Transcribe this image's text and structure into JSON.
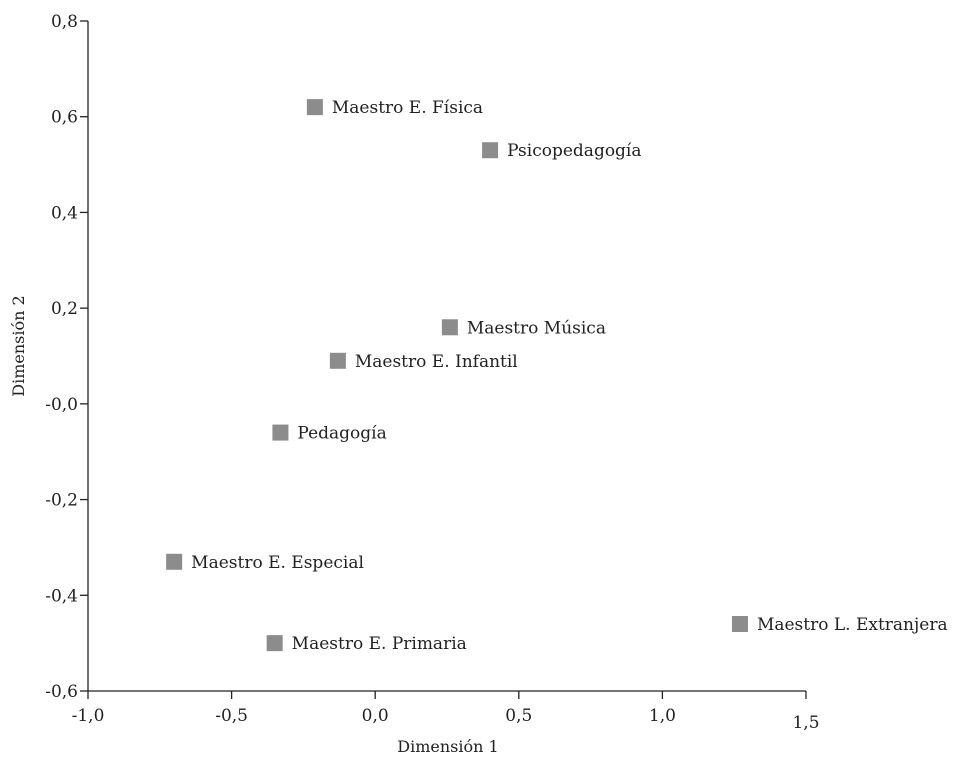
{
  "chart_data": {
    "type": "scatter",
    "xlabel": "Dimensión 1",
    "ylabel": "Dimensión 2",
    "xlim": [
      -1.0,
      1.5
    ],
    "ylim": [
      -0.6,
      0.8
    ],
    "x_ticks": [
      -1.0,
      -0.5,
      0.0,
      0.5,
      1.0,
      1.5
    ],
    "x_tick_labels": [
      "-1,0",
      "-0,5",
      "0,0",
      "0,5",
      "1,0",
      "1,5"
    ],
    "y_ticks": [
      -0.6,
      -0.4,
      -0.2,
      0.0,
      0.2,
      0.4,
      0.6,
      0.8
    ],
    "y_tick_labels": [
      "-0,6",
      "-0,4",
      "-0,2",
      "-0,0",
      "0,2",
      "0,4",
      "0,6",
      "0,8"
    ],
    "grid": false,
    "marker": "square",
    "marker_color": "#8c8c8c",
    "points": [
      {
        "label": "Maestro E. Física",
        "x": -0.21,
        "y": 0.62
      },
      {
        "label": "Psicopedagogía",
        "x": 0.4,
        "y": 0.53
      },
      {
        "label": "Maestro Música",
        "x": 0.26,
        "y": 0.16
      },
      {
        "label": "Maestro E. Infantil",
        "x": -0.13,
        "y": 0.09
      },
      {
        "label": "Pedagogía",
        "x": -0.33,
        "y": -0.06
      },
      {
        "label": "Maestro E. Especial",
        "x": -0.7,
        "y": -0.33
      },
      {
        "label": "Maestro L. Extranjera",
        "x": 1.27,
        "y": -0.46
      },
      {
        "label": "Maestro E. Primaria",
        "x": -0.35,
        "y": -0.5
      }
    ]
  }
}
